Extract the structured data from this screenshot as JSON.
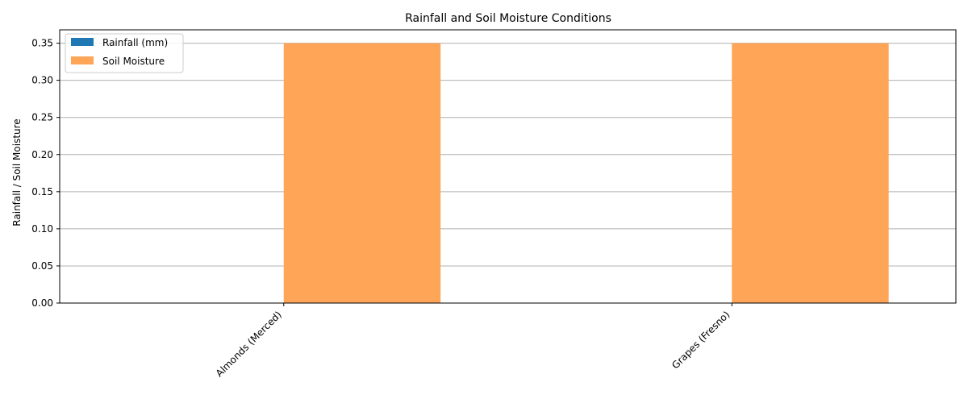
{
  "chart_data": {
    "type": "bar",
    "title": "Rainfall and Soil Moisture Conditions",
    "xlabel": "",
    "ylabel": "Rainfall / Soil Moisture",
    "categories": [
      "Almonds (Merced)",
      "Grapes (Fresno)"
    ],
    "series": [
      {
        "name": "Rainfall (mm)",
        "values": [
          0,
          0
        ],
        "color": "#1f77b4"
      },
      {
        "name": "Soil Moisture",
        "values": [
          0.35,
          0.35
        ],
        "color": "#ffa557"
      }
    ],
    "ylim": [
      0,
      0.368
    ],
    "yticks": [
      "0.00",
      "0.05",
      "0.10",
      "0.15",
      "0.20",
      "0.25",
      "0.30",
      "0.35"
    ],
    "grid": "y",
    "legend_position": "upper-left"
  }
}
